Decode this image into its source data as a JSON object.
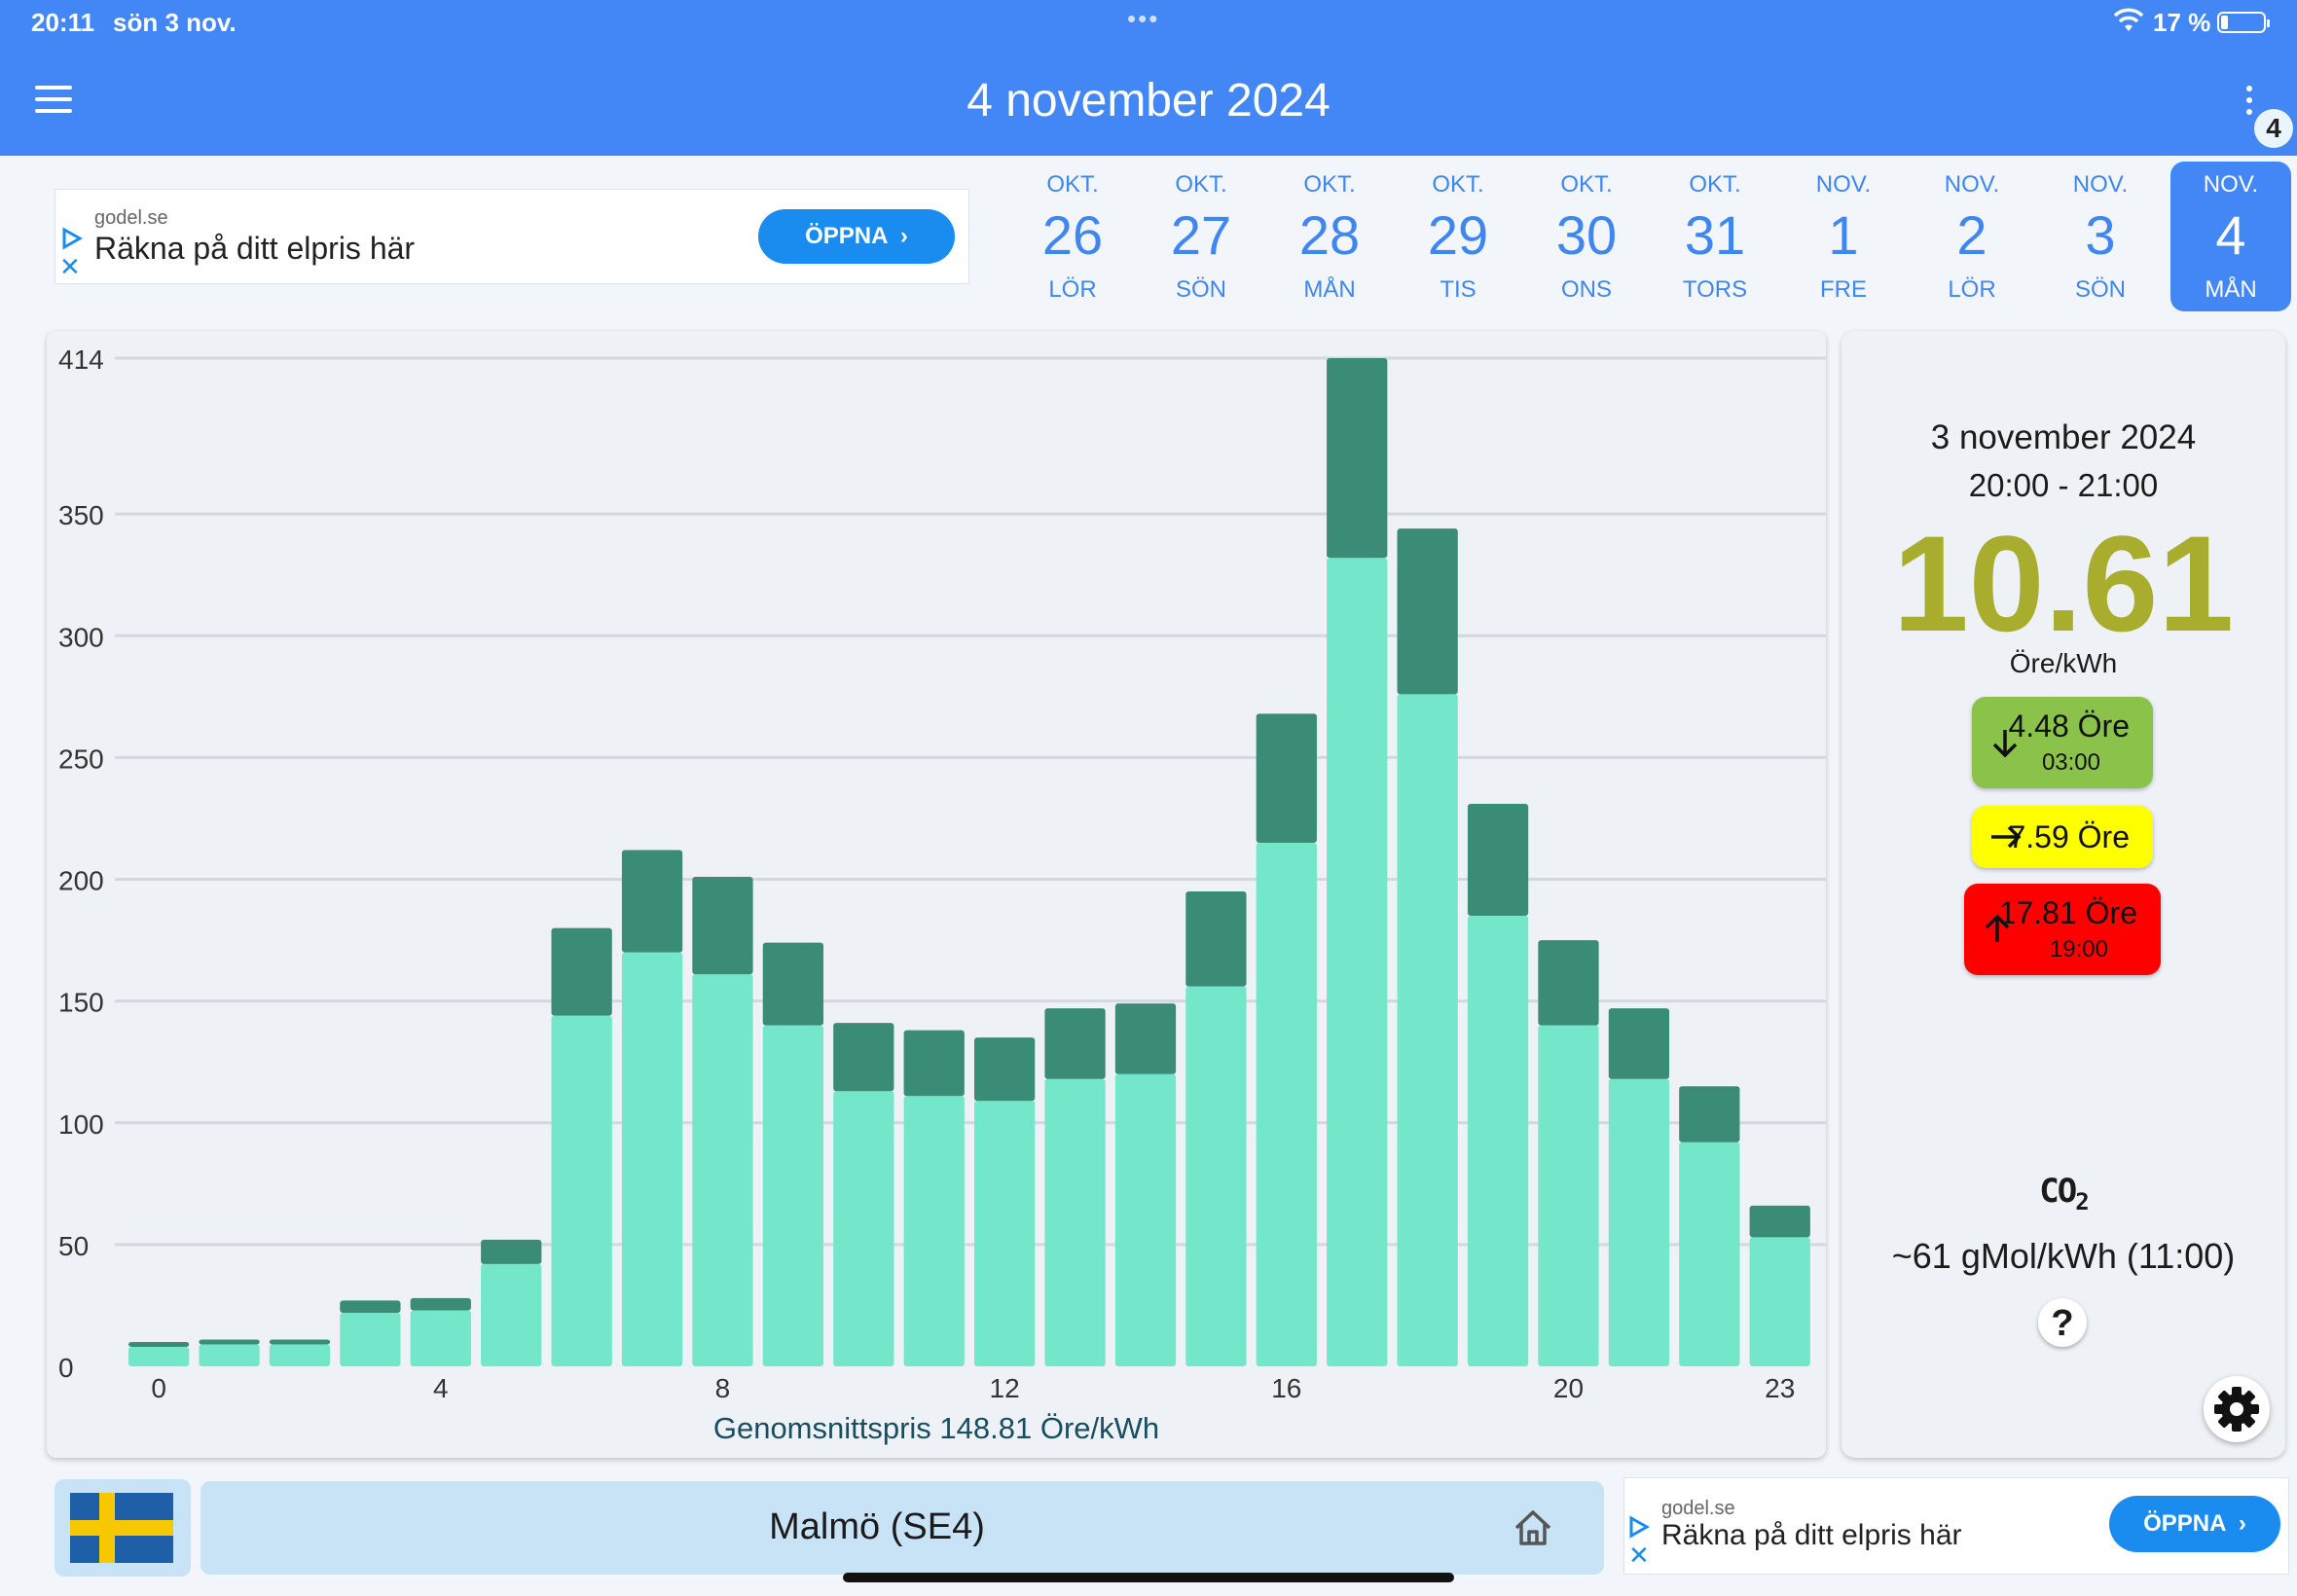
{
  "status_bar": {
    "time": "20:11",
    "date": "sön 3 nov.",
    "battery": "17 %",
    "battery_level": 0.17
  },
  "app_bar": {
    "title": "4 november 2024",
    "badge": "4",
    "menu_icon": "hamburger-menu-icon",
    "more_icon": "more-vertical-icon"
  },
  "ads": {
    "top": {
      "source": "godel.se",
      "message": "Räkna på ditt elpris här",
      "button": "ÖPPNA"
    },
    "bottom": {
      "source": "godel.se",
      "message": "Räkna på ditt elpris här",
      "button": "ÖPPNA"
    }
  },
  "dates": [
    {
      "month": "OKT.",
      "day": "26",
      "weekday": "LÖR",
      "selected": false
    },
    {
      "month": "OKT.",
      "day": "27",
      "weekday": "SÖN",
      "selected": false
    },
    {
      "month": "OKT.",
      "day": "28",
      "weekday": "MÅN",
      "selected": false
    },
    {
      "month": "OKT.",
      "day": "29",
      "weekday": "TIS",
      "selected": false
    },
    {
      "month": "OKT.",
      "day": "30",
      "weekday": "ONS",
      "selected": false
    },
    {
      "month": "OKT.",
      "day": "31",
      "weekday": "TORS",
      "selected": false
    },
    {
      "month": "NOV.",
      "day": "1",
      "weekday": "FRE",
      "selected": false
    },
    {
      "month": "NOV.",
      "day": "2",
      "weekday": "LÖR",
      "selected": false
    },
    {
      "month": "NOV.",
      "day": "3",
      "weekday": "SÖN",
      "selected": false
    },
    {
      "month": "NOV.",
      "day": "4",
      "weekday": "MÅN",
      "selected": true
    }
  ],
  "chart_data": {
    "type": "bar",
    "stacked": true,
    "x": [
      0,
      1,
      2,
      3,
      4,
      5,
      6,
      7,
      8,
      9,
      10,
      11,
      12,
      13,
      14,
      15,
      16,
      17,
      18,
      19,
      20,
      21,
      22,
      23
    ],
    "x_tick_labels": [
      "0",
      "4",
      "8",
      "12",
      "16",
      "20",
      "23"
    ],
    "x_tick_values": [
      0,
      4,
      8,
      12,
      16,
      20,
      23
    ],
    "y_tick_labels": [
      "0",
      "50",
      "100",
      "150",
      "200",
      "250",
      "300",
      "350",
      "414"
    ],
    "y_tick_values": [
      0,
      50,
      100,
      150,
      200,
      250,
      300,
      350,
      414
    ],
    "ylim": [
      0,
      414
    ],
    "grid": true,
    "series": [
      {
        "values": [
          8,
          9,
          9,
          22,
          23,
          42,
          144,
          170,
          161,
          140,
          113,
          111,
          109,
          118,
          120,
          156,
          215,
          332,
          276,
          185,
          140,
          118,
          92,
          53
        ],
        "color": "#74e6c9"
      },
      {
        "values": [
          2,
          2,
          2,
          5,
          5,
          10,
          36,
          42,
          40,
          34,
          28,
          27,
          26,
          29,
          29,
          39,
          53,
          82,
          68,
          46,
          35,
          29,
          23,
          13
        ],
        "color": "#3b8c76"
      }
    ],
    "caption": "Genomsnittspris 148.81 Öre/kWh"
  },
  "info": {
    "date": "3 november 2024",
    "time_range": "20:00 - 21:00",
    "price": "10.61",
    "unit": "Öre/kWh",
    "price_color": "#a9ad2e",
    "min": {
      "value": "4.48 Öre",
      "time": "03:00",
      "color": "#8bc34a",
      "icon": "arrow-down-icon"
    },
    "avg": {
      "value": "7.59 Öre",
      "color": "#ffff00",
      "icon": "arrow-right-icon"
    },
    "max": {
      "value": "17.81 Öre",
      "time": "19:00",
      "color": "#ff0000",
      "icon": "arrow-up-icon"
    },
    "co2_label": "CO",
    "co2_sub": "2",
    "co2_value": "~61 gMol/kWh (11:00)",
    "help": "?"
  },
  "region": {
    "label": "Malmö (SE4)",
    "flag_icon": "sweden-flag-icon",
    "home_icon": "home-icon"
  },
  "colors": {
    "primary": "#4287f5",
    "ad_button": "#1a8cf0",
    "region_bg": "#c8e2f6"
  }
}
